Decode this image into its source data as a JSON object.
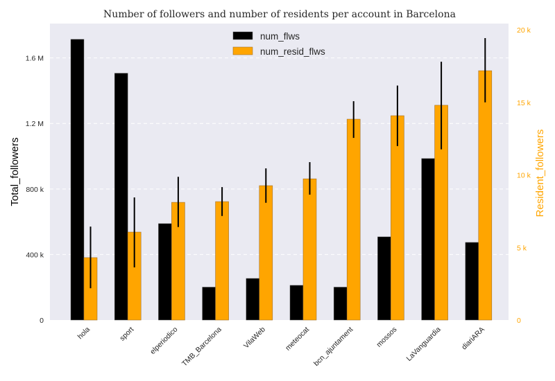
{
  "chart_data": {
    "type": "bar",
    "title": "Number of followers and number of residents per account in Barcelona",
    "xlabel": "",
    "categories": [
      "hola",
      "sport",
      "elperiodico",
      "TMB_Barcelona",
      "VilaWeb",
      "meteocat",
      "bcn_ajuntament",
      "mossos",
      "LaVanguardia",
      "diariARA"
    ],
    "series": [
      {
        "name": "num_flws",
        "axis": "left",
        "color": "#000000",
        "values": [
          1714000,
          1507000,
          589000,
          201000,
          254000,
          212000,
          201000,
          508000,
          986000,
          474000
        ]
      },
      {
        "name": "num_resid_flws",
        "axis": "right",
        "color": "#ffa500",
        "values": [
          4300,
          6060,
          8110,
          8160,
          9260,
          9730,
          13840,
          14080,
          14800,
          17180
        ],
        "error_low": [
          2190,
          3630,
          6410,
          7170,
          8080,
          8640,
          12550,
          11990,
          11760,
          15000
        ],
        "error_high": [
          6440,
          8450,
          9870,
          9160,
          10450,
          10880,
          15080,
          16160,
          17800,
          19430
        ]
      }
    ],
    "y_left": {
      "label": "Total_followers",
      "lim": [
        0,
        1810000
      ],
      "ticks": [
        0,
        400000,
        800000,
        1200000,
        1600000
      ],
      "tick_labels": [
        "0",
        "400 k",
        "800 k",
        "1.2 M",
        "1.6 M"
      ]
    },
    "y_right": {
      "label": "Resident_followers",
      "lim": [
        0,
        20430
      ],
      "ticks": [
        0,
        5000,
        10000,
        15000,
        20000
      ],
      "tick_labels": [
        "0",
        "5 k",
        "10 k",
        "15 k",
        "20 k"
      ],
      "color": "#ffa500"
    },
    "grid": true,
    "legend": "top-center",
    "background": "#eaeaf2"
  }
}
